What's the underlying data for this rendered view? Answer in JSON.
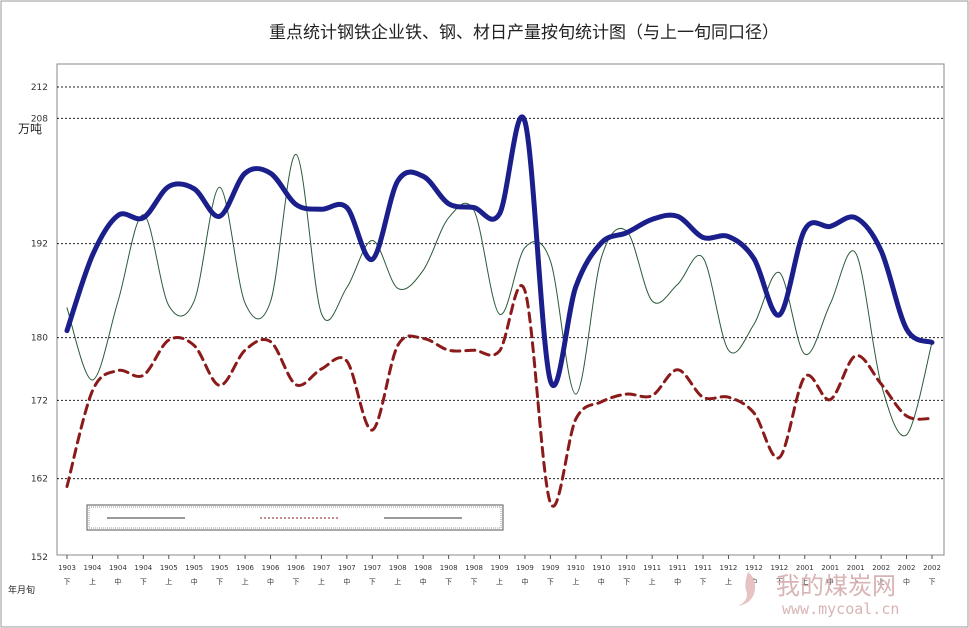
{
  "chart_data": {
    "type": "line",
    "title": "重点统计钢铁企业铁、钢、材日产量按旬统计图（与上一旬同口径）",
    "ylabel": "万吨",
    "xlabel": "年月旬",
    "ylim": [
      152,
      212
    ],
    "yticks": [
      "152",
      "162",
      "172",
      "180",
      "192",
      "208",
      "212"
    ],
    "grid": true,
    "legend": {
      "placement": "bottom-left",
      "entries": [
        "",
        "",
        ""
      ]
    },
    "x_labels": [
      {
        "top": "1903",
        "bottom": "下"
      },
      {
        "top": "1904",
        "bottom": "上"
      },
      {
        "top": "1904",
        "bottom": "中"
      },
      {
        "top": "1904",
        "bottom": "下"
      },
      {
        "top": "1905",
        "bottom": "上"
      },
      {
        "top": "1905",
        "bottom": "中"
      },
      {
        "top": "1905",
        "bottom": "下"
      },
      {
        "top": "1906",
        "bottom": "上"
      },
      {
        "top": "1906",
        "bottom": "中"
      },
      {
        "top": "1906",
        "bottom": "下"
      },
      {
        "top": "1907",
        "bottom": "上"
      },
      {
        "top": "1907",
        "bottom": "中"
      },
      {
        "top": "1907",
        "bottom": "下"
      },
      {
        "top": "1908",
        "bottom": "上"
      },
      {
        "top": "1908",
        "bottom": "中"
      },
      {
        "top": "1908",
        "bottom": "下"
      },
      {
        "top": "1908",
        "bottom": "下"
      },
      {
        "top": "1909",
        "bottom": "上"
      },
      {
        "top": "1909",
        "bottom": "中"
      },
      {
        "top": "1909",
        "bottom": "下"
      },
      {
        "top": "1910",
        "bottom": "上"
      },
      {
        "top": "1910",
        "bottom": "中"
      },
      {
        "top": "1910",
        "bottom": "下"
      },
      {
        "top": "1911",
        "bottom": "上"
      },
      {
        "top": "1911",
        "bottom": "中"
      },
      {
        "top": "1911",
        "bottom": "下"
      },
      {
        "top": "1912",
        "bottom": "上"
      },
      {
        "top": "1912",
        "bottom": "中"
      },
      {
        "top": "1912",
        "bottom": "下"
      },
      {
        "top": "2001",
        "bottom": "上"
      },
      {
        "top": "2001",
        "bottom": "中"
      },
      {
        "top": "2001",
        "bottom": "下"
      },
      {
        "top": "2002",
        "bottom": "上"
      },
      {
        "top": "2002",
        "bottom": "中"
      },
      {
        "top": "2002",
        "bottom": "下"
      }
    ],
    "series": [
      {
        "key": "thick_solid",
        "color": "#1a1f8c",
        "style": "solid-thick",
        "values": [
          180.9,
          190.5,
          195.6,
          195.3,
          199.3,
          199.0,
          195.5,
          201.0,
          201.0,
          197.0,
          196.4,
          196.6,
          190.0,
          200.0,
          200.6,
          197.1,
          196.6,
          195.8,
          207.6,
          174.5,
          186.5,
          192.1,
          193.4,
          195.1,
          195.5,
          192.8,
          192.9,
          190.1,
          182.9,
          193.8,
          194.2,
          195.3,
          191.1,
          181.1,
          179.4
        ]
      },
      {
        "key": "thin_solid",
        "color": "#2a5a3a",
        "style": "solid-thin",
        "values": [
          183.8,
          174.6,
          184.6,
          195.7,
          184.1,
          184.7,
          199.2,
          184.4,
          184.6,
          203.4,
          183.1,
          186.4,
          192.4,
          186.3,
          188.6,
          195.3,
          196.2,
          183.0,
          191.5,
          189.8,
          172.8,
          190.2,
          193.6,
          184.7,
          186.8,
          190.2,
          178.4,
          181.7,
          188.3,
          177.9,
          184.3,
          190.8,
          174.1,
          167.6,
          179.4
        ]
      },
      {
        "key": "dashed",
        "color": "#8b1a1a",
        "style": "dashed",
        "values": [
          161.0,
          173.2,
          175.8,
          175.2,
          179.7,
          179.0,
          173.9,
          178.4,
          179.5,
          174.0,
          176.0,
          177.0,
          168.2,
          179.0,
          179.9,
          178.4,
          178.4,
          178.3,
          186.0,
          158.9,
          169.6,
          171.8,
          172.8,
          172.6,
          175.9,
          172.4,
          172.4,
          170.4,
          164.7,
          175.0,
          172.1,
          177.7,
          174.1,
          170.0,
          169.7
        ]
      }
    ]
  },
  "watermark": {
    "text": "我的煤炭网",
    "url": "www.mycoal.cn"
  }
}
